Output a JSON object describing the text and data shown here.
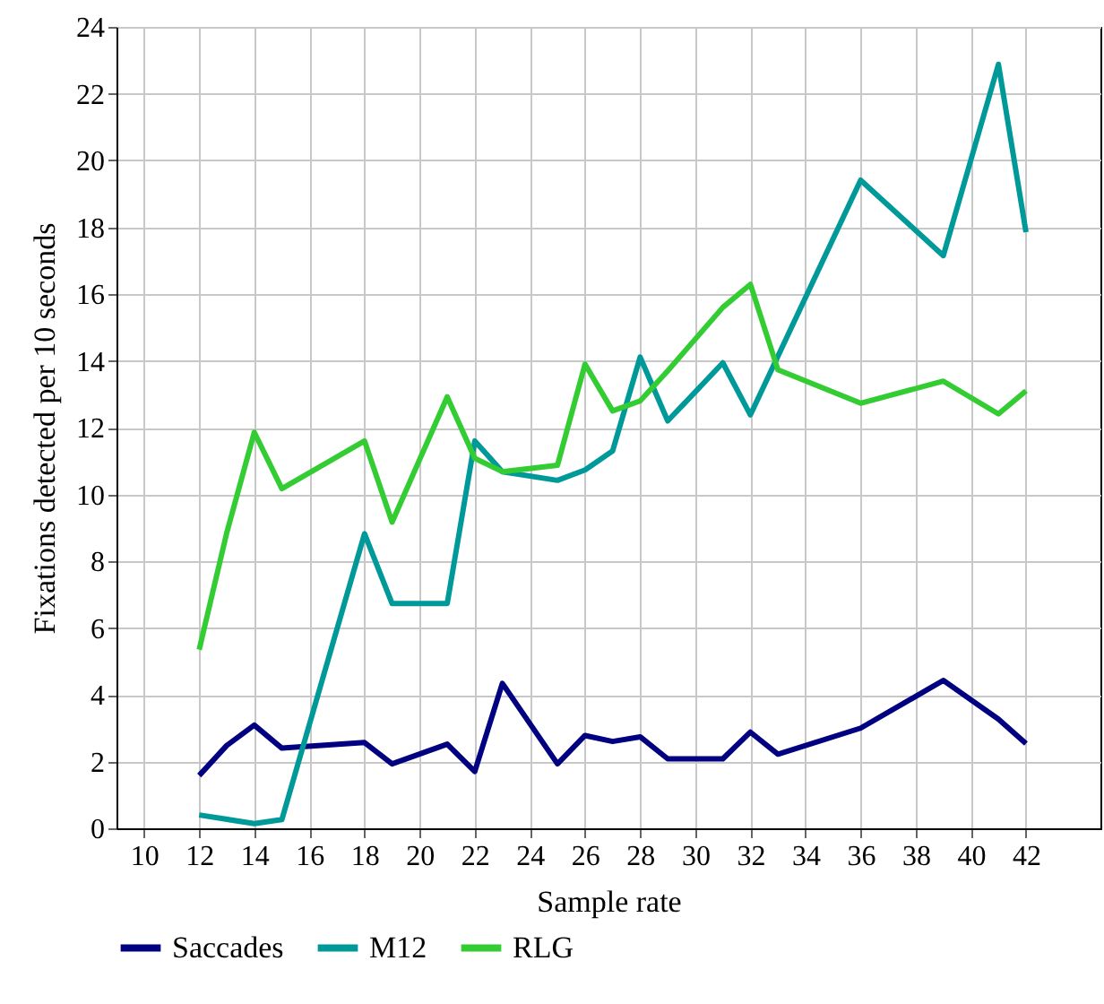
{
  "chart_data": {
    "type": "line",
    "xlabel": "Sample rate",
    "ylabel": "Fixations detected per 10 seconds",
    "xlim": [
      9,
      44.7
    ],
    "ylim": [
      0,
      24
    ],
    "xticks": [
      10,
      12,
      14,
      16,
      18,
      20,
      22,
      24,
      26,
      28,
      30,
      32,
      34,
      36,
      38,
      40,
      42
    ],
    "yticks": [
      0,
      2,
      4,
      6,
      8,
      10,
      12,
      14,
      16,
      18,
      20,
      22,
      24
    ],
    "grid": true,
    "legend": "bottom",
    "marker": "none",
    "line_style": "solid",
    "series": [
      {
        "name": "Saccades",
        "color": "#000080",
        "x": [
          12,
          13,
          14,
          15,
          18,
          19,
          21,
          22,
          23,
          25,
          26,
          27,
          28,
          29,
          31,
          32,
          33,
          36,
          39,
          41,
          42
        ],
        "values": [
          1.58,
          2.48,
          3.09,
          2.4,
          2.57,
          1.93,
          2.52,
          1.7,
          4.34,
          1.93,
          2.78,
          2.6,
          2.74,
          2.08,
          2.08,
          2.88,
          2.22,
          3.0,
          4.43,
          3.27,
          2.54
        ]
      },
      {
        "name": "M12",
        "color": "#009999",
        "x": [
          12,
          14,
          15,
          18,
          19,
          21,
          22,
          23,
          25,
          26,
          27,
          28,
          29,
          31,
          32,
          36,
          39,
          41,
          42
        ],
        "values": [
          0.4,
          0.14,
          0.26,
          8.82,
          6.73,
          6.73,
          11.6,
          10.68,
          10.42,
          10.73,
          11.3,
          14.11,
          12.2,
          13.94,
          12.38,
          19.41,
          17.15,
          22.88,
          17.85
        ]
      },
      {
        "name": "RLG",
        "color": "#33cc33",
        "x": [
          12,
          13,
          14,
          15,
          18,
          19,
          21,
          22,
          23,
          25,
          26,
          27,
          28,
          29,
          31,
          32,
          33,
          36,
          39,
          41,
          42
        ],
        "values": [
          5.35,
          8.85,
          11.86,
          10.17,
          11.6,
          9.17,
          12.92,
          11.08,
          10.68,
          10.87,
          13.9,
          12.5,
          12.8,
          13.7,
          15.6,
          16.29,
          13.73,
          12.73,
          13.39,
          12.41,
          13.1
        ]
      }
    ]
  }
}
